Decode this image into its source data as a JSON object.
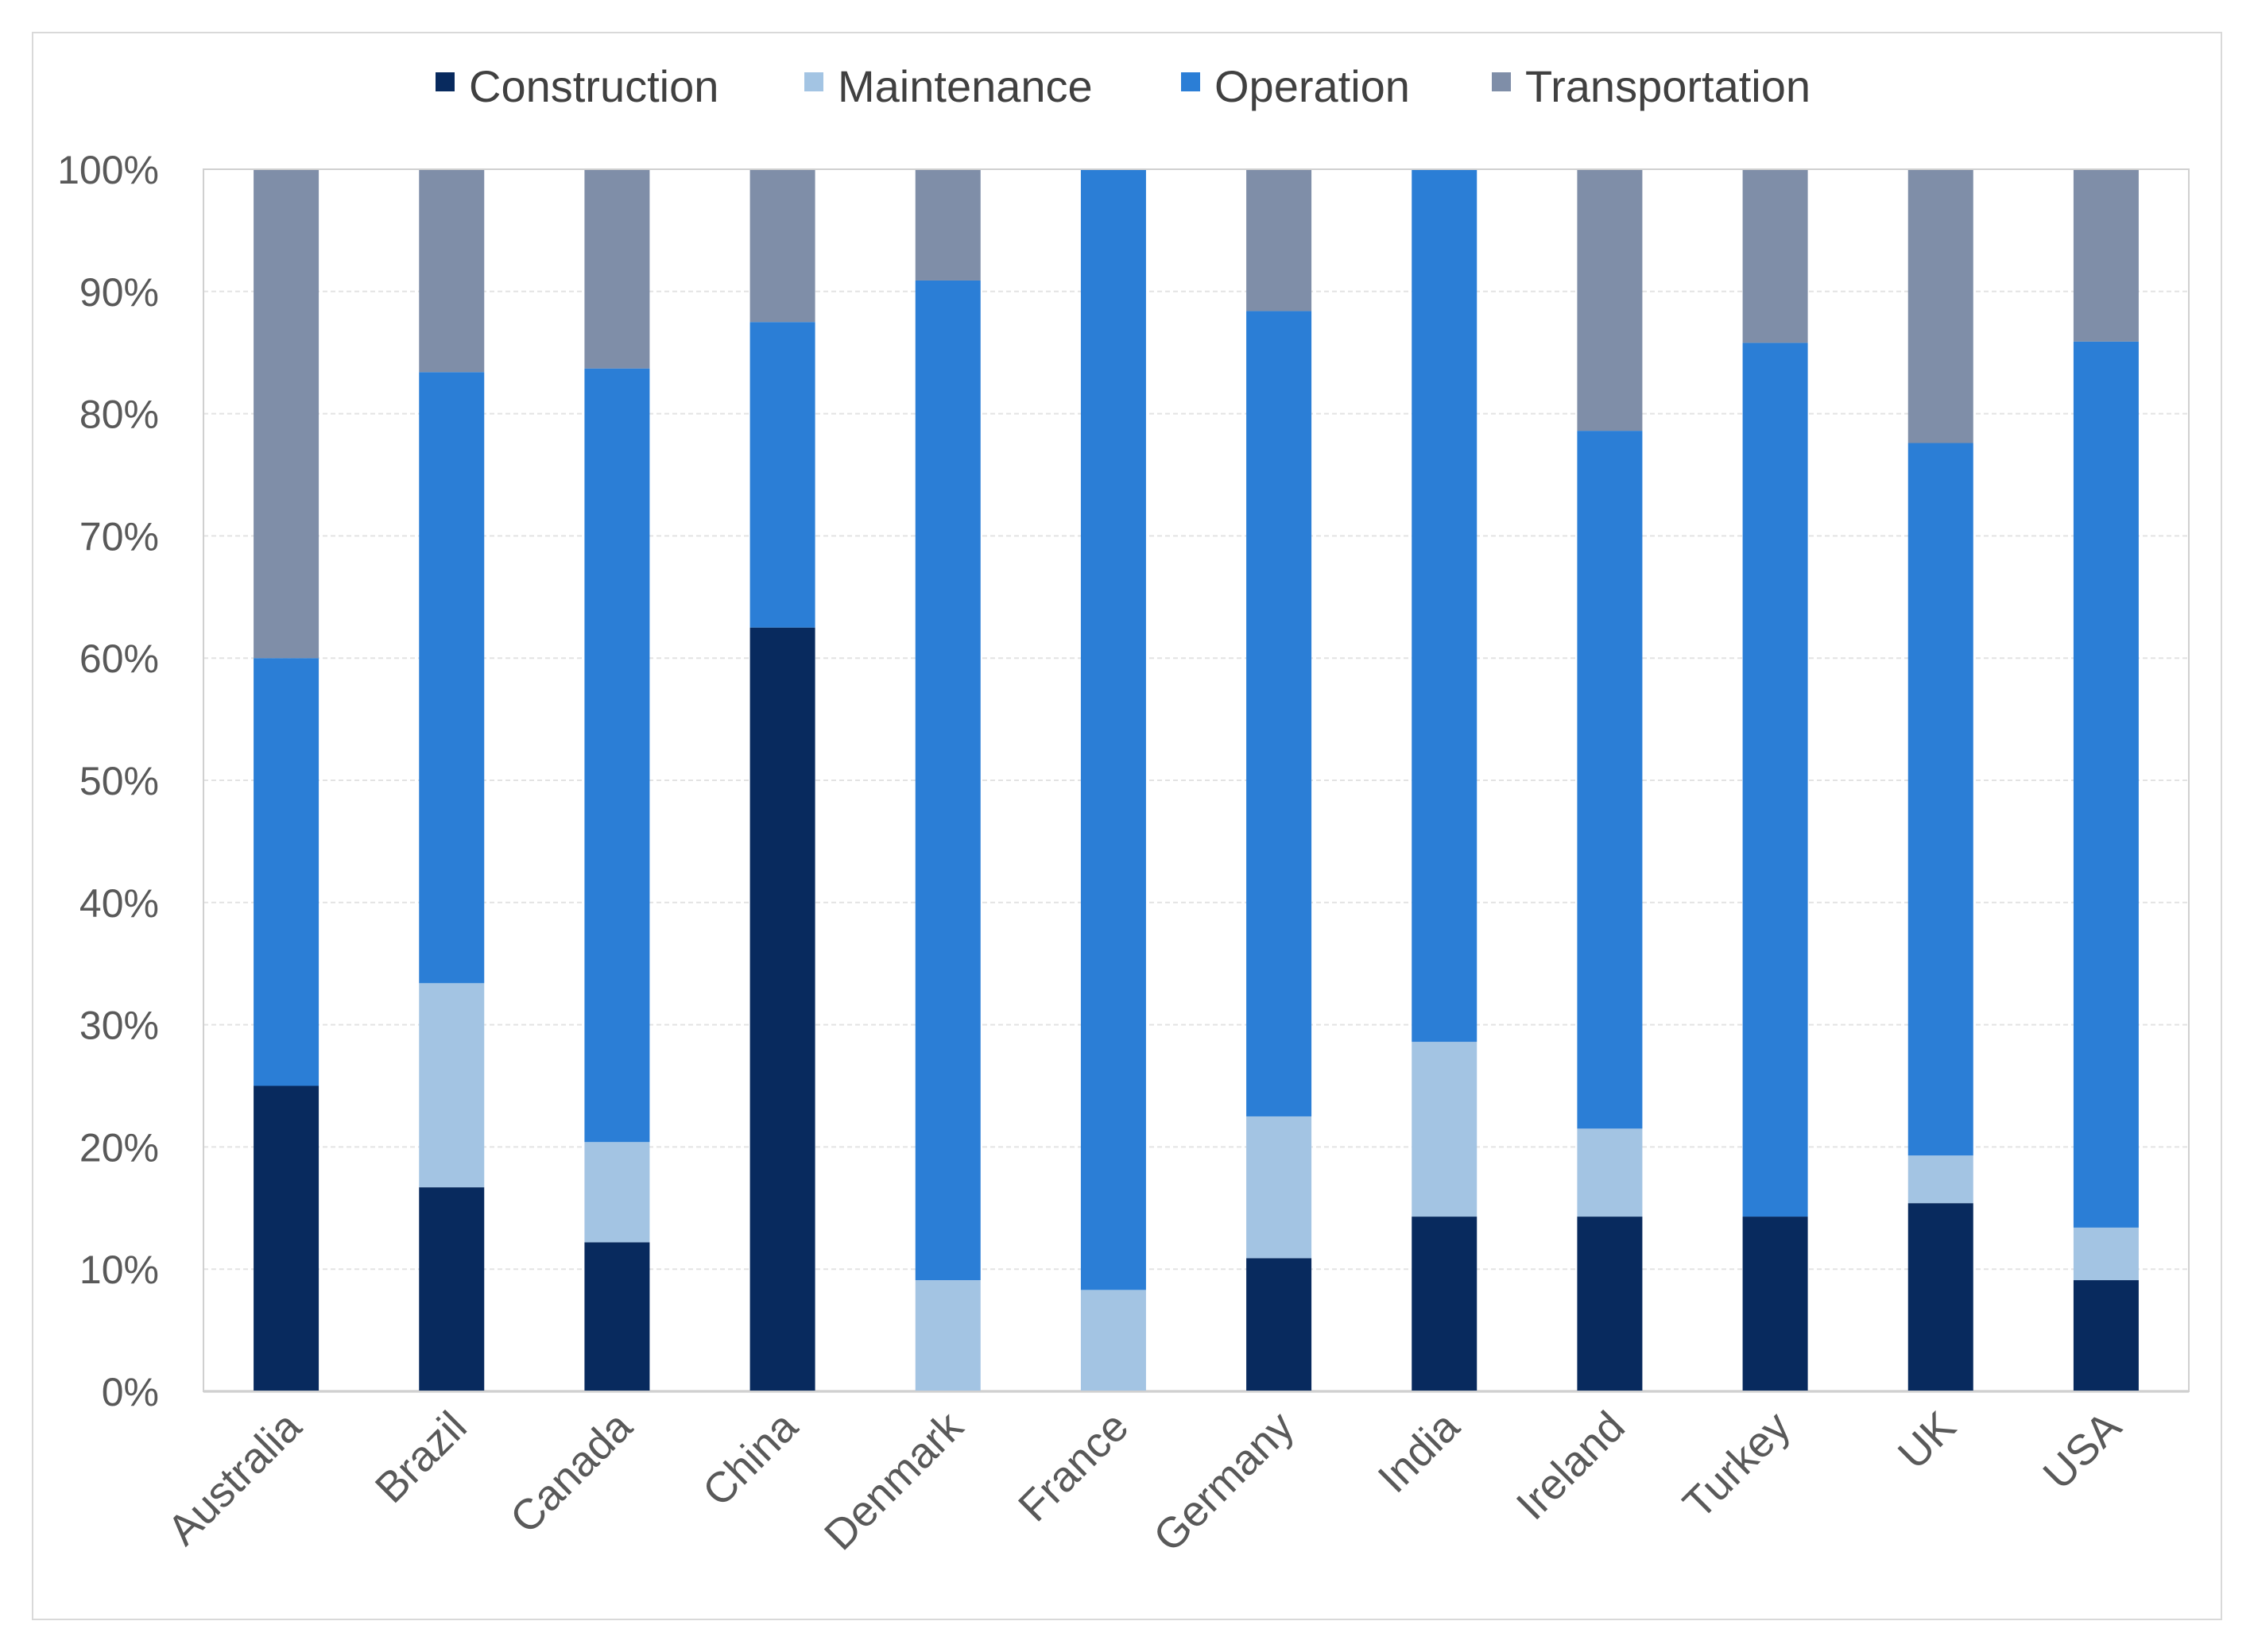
{
  "chart_data": {
    "type": "bar",
    "stacked": true,
    "percent": true,
    "title": "",
    "xlabel": "",
    "ylabel": "",
    "ylim": [
      0,
      100
    ],
    "yticks": [
      0,
      10,
      20,
      30,
      40,
      50,
      60,
      70,
      80,
      90,
      100
    ],
    "ytick_labels": [
      "0%",
      "10%",
      "20%",
      "30%",
      "40%",
      "50%",
      "60%",
      "70%",
      "80%",
      "90%",
      "100%"
    ],
    "grid": true,
    "legend_position": "top-center",
    "categories": [
      "Australia",
      "Brazil",
      "Canada",
      "China",
      "Denmark",
      "France",
      "Germany",
      "India",
      "Ireland",
      "Turkey",
      "UK",
      "USA"
    ],
    "series": [
      {
        "name": "Construction",
        "color": "#082a5e",
        "values": [
          25.0,
          16.7,
          12.2,
          62.5,
          0,
          0,
          10.9,
          14.3,
          14.3,
          14.3,
          15.4,
          9.1
        ]
      },
      {
        "name": "Maintenance",
        "color": "#a3c4e3",
        "values": [
          0,
          16.7,
          8.2,
          0,
          9.1,
          8.3,
          11.6,
          14.3,
          7.2,
          0,
          3.9,
          4.3
        ]
      },
      {
        "name": "Operation",
        "color": "#2b7ed6",
        "values": [
          35.0,
          50.0,
          63.3,
          25.0,
          81.8,
          91.7,
          65.9,
          71.4,
          57.1,
          71.5,
          58.3,
          72.5
        ]
      },
      {
        "name": "Transportation",
        "color": "#7f8ea8",
        "values": [
          40.0,
          16.6,
          16.3,
          12.5,
          9.1,
          0,
          11.6,
          0,
          21.4,
          14.2,
          22.4,
          14.1
        ]
      }
    ]
  }
}
